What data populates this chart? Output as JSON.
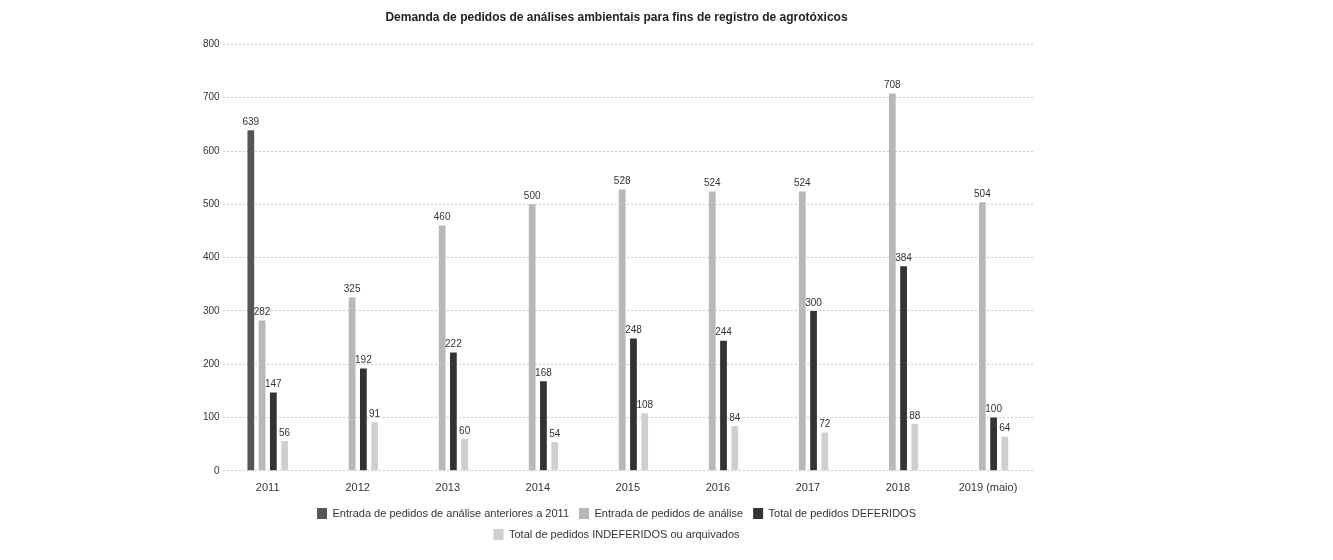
{
  "chart_data": {
    "type": "bar",
    "title": "Demanda de pedidos de análises ambientais para fins de registro de agrotóxicos",
    "categories": [
      "2011",
      "2012",
      "2013",
      "2014",
      "2015",
      "2016",
      "2017",
      "2018",
      "2019 (maio)"
    ],
    "series": [
      {
        "name": "Entrada de pedidos de análise anteriores a 2011",
        "color": "#555555",
        "values": [
          639,
          null,
          null,
          null,
          null,
          null,
          null,
          null,
          null
        ]
      },
      {
        "name": "Entrada de pedidos de análise",
        "color": "#b8b8b8",
        "values": [
          282,
          325,
          460,
          500,
          528,
          524,
          524,
          708,
          504
        ]
      },
      {
        "name": "Total de pedidos DEFERIDOS",
        "color": "#333333",
        "values": [
          147,
          192,
          222,
          168,
          248,
          244,
          300,
          384,
          100
        ]
      },
      {
        "name": "Total de pedidos INDEFERIDOS ou arquivados",
        "color": "#cfcfcf",
        "values": [
          56,
          91,
          60,
          54,
          108,
          84,
          72,
          88,
          64
        ]
      }
    ],
    "ylim": [
      0,
      800
    ],
    "yticks": [
      0,
      100,
      200,
      300,
      400,
      500,
      600,
      700,
      800
    ],
    "grid": "y",
    "legend": "bottom",
    "data_labels": true
  }
}
